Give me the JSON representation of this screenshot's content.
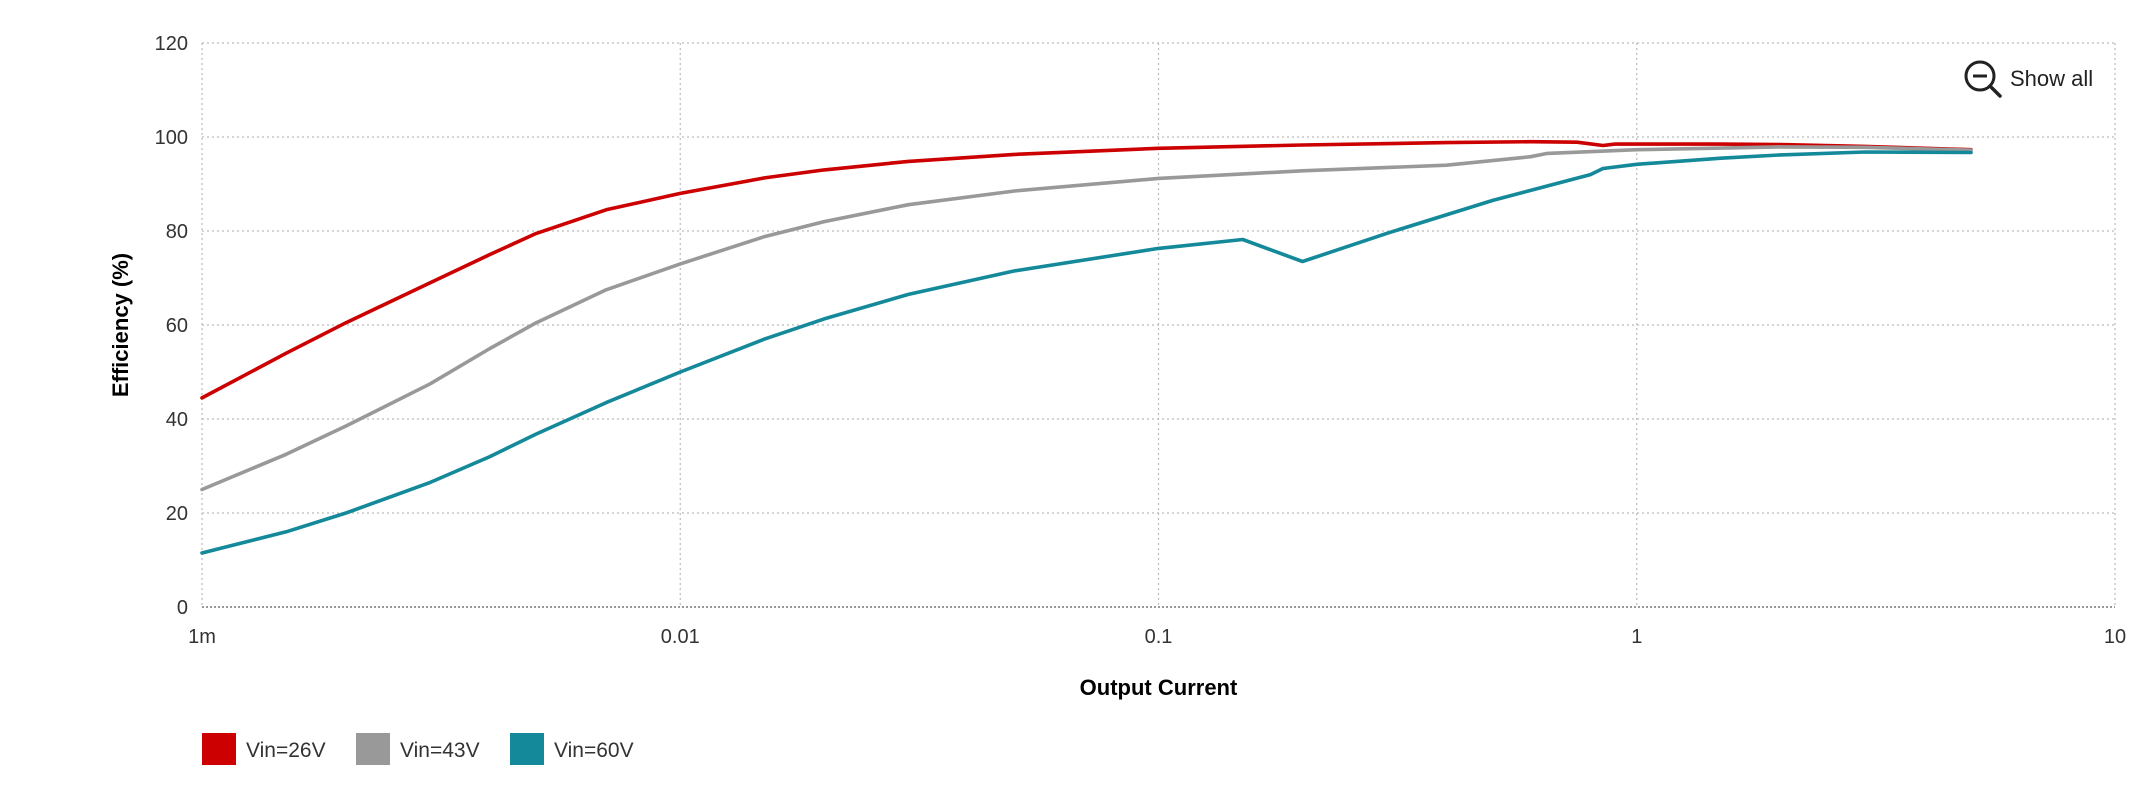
{
  "chart_data": {
    "type": "line",
    "title": "",
    "xlabel": "Output Current",
    "ylabel": "Efficiency (%)",
    "x_scale": "log",
    "xlim": [
      0.001,
      10
    ],
    "ylim": [
      0,
      120
    ],
    "x_ticks": [
      {
        "value": 0.001,
        "label": "1m"
      },
      {
        "value": 0.01,
        "label": "0.01"
      },
      {
        "value": 0.1,
        "label": "0.1"
      },
      {
        "value": 1,
        "label": "1"
      },
      {
        "value": 10,
        "label": "10"
      }
    ],
    "y_ticks": [
      {
        "value": 0,
        "label": "0"
      },
      {
        "value": 20,
        "label": "20"
      },
      {
        "value": 40,
        "label": "40"
      },
      {
        "value": 60,
        "label": "60"
      },
      {
        "value": 80,
        "label": "80"
      },
      {
        "value": 100,
        "label": "100"
      },
      {
        "value": 120,
        "label": "120"
      }
    ],
    "grid": true,
    "legend_position": "bottom-left",
    "series": [
      {
        "name": "Vin=26V",
        "color": "#cc0000",
        "points": [
          [
            0.001,
            44.5
          ],
          [
            0.0015,
            54
          ],
          [
            0.002,
            60.5
          ],
          [
            0.003,
            69
          ],
          [
            0.004,
            75
          ],
          [
            0.005,
            79.5
          ],
          [
            0.007,
            84.5
          ],
          [
            0.01,
            88
          ],
          [
            0.015,
            91.3
          ],
          [
            0.02,
            93
          ],
          [
            0.03,
            94.8
          ],
          [
            0.05,
            96.3
          ],
          [
            0.1,
            97.6
          ],
          [
            0.2,
            98.3
          ],
          [
            0.4,
            98.8
          ],
          [
            0.6,
            99
          ],
          [
            0.75,
            98.9
          ],
          [
            0.85,
            98.2
          ],
          [
            0.9,
            98.5
          ],
          [
            1.5,
            98.5
          ],
          [
            2,
            98.4
          ],
          [
            3,
            98
          ],
          [
            4,
            97.6
          ],
          [
            5,
            97.3
          ]
        ]
      },
      {
        "name": "Vin=43V",
        "color": "#999999",
        "points": [
          [
            0.001,
            25
          ],
          [
            0.0015,
            32.5
          ],
          [
            0.002,
            38.5
          ],
          [
            0.003,
            47.5
          ],
          [
            0.004,
            55
          ],
          [
            0.005,
            60.5
          ],
          [
            0.007,
            67.5
          ],
          [
            0.01,
            73
          ],
          [
            0.015,
            78.8
          ],
          [
            0.02,
            82
          ],
          [
            0.03,
            85.6
          ],
          [
            0.05,
            88.5
          ],
          [
            0.1,
            91.2
          ],
          [
            0.2,
            92.8
          ],
          [
            0.4,
            94
          ],
          [
            0.6,
            95.8
          ],
          [
            0.65,
            96.5
          ],
          [
            1,
            97.3
          ],
          [
            2,
            97.9
          ],
          [
            3,
            97.8
          ],
          [
            5,
            97.2
          ]
        ]
      },
      {
        "name": "Vin=60V",
        "color": "#13899a",
        "points": [
          [
            0.001,
            11.5
          ],
          [
            0.0015,
            16
          ],
          [
            0.002,
            20
          ],
          [
            0.003,
            26.5
          ],
          [
            0.004,
            32
          ],
          [
            0.005,
            36.8
          ],
          [
            0.007,
            43.5
          ],
          [
            0.01,
            50
          ],
          [
            0.015,
            57
          ],
          [
            0.02,
            61.3
          ],
          [
            0.03,
            66.5
          ],
          [
            0.05,
            71.5
          ],
          [
            0.1,
            76.3
          ],
          [
            0.15,
            78.2
          ],
          [
            0.2,
            73.5
          ],
          [
            0.3,
            79.5
          ],
          [
            0.5,
            86.5
          ],
          [
            0.8,
            92
          ],
          [
            0.85,
            93.3
          ],
          [
            1,
            94.2
          ],
          [
            1.5,
            95.5
          ],
          [
            2,
            96.2
          ],
          [
            3,
            96.8
          ],
          [
            5,
            96.7
          ]
        ]
      }
    ]
  },
  "toolbar": {
    "show_all_label": "Show all",
    "show_all_icon": "zoom-out-icon"
  }
}
